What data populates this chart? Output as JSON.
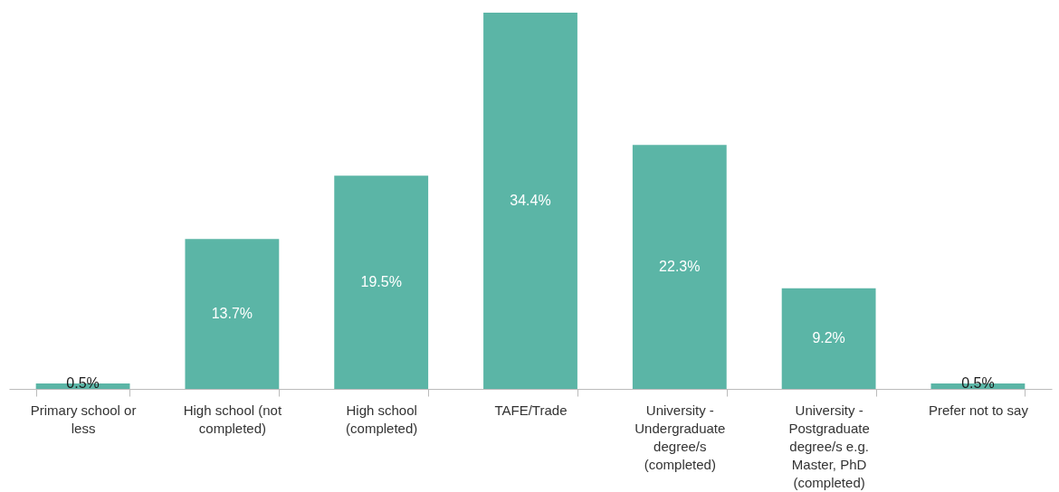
{
  "chart_data": {
    "type": "bar",
    "categories": [
      "Primary school or less",
      "High school (not completed)",
      "High school (completed)",
      "TAFE/Trade",
      "University - Undergraduate degree/s (completed)",
      "University - Postgraduate degree/s e.g. Master, PhD (completed)",
      "Prefer not to say"
    ],
    "values": [
      0.5,
      13.7,
      19.5,
      34.4,
      22.3,
      9.2,
      0.5
    ],
    "value_labels": [
      "0.5%",
      "13.7%",
      "19.5%",
      "34.4%",
      "22.3%",
      "9.2%",
      "0.5%"
    ],
    "color": "#5bb5a6"
  }
}
